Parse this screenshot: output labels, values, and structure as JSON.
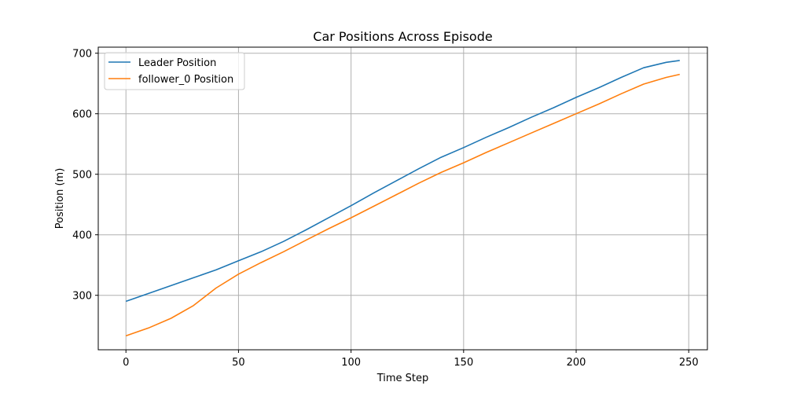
{
  "chart_data": {
    "type": "line",
    "title": "Car Positions Across Episode",
    "xlabel": "Time Step",
    "ylabel": "Position (m)",
    "xlim": [
      -12.3,
      258.3
    ],
    "ylim": [
      210,
      710
    ],
    "xticks": [
      0,
      50,
      100,
      150,
      200,
      250
    ],
    "yticks": [
      300,
      400,
      500,
      600,
      700
    ],
    "grid": true,
    "legend": "upper-left",
    "series": [
      {
        "name": "Leader Position",
        "color": "#1f77b4",
        "points": [
          [
            0,
            290
          ],
          [
            10,
            303
          ],
          [
            20,
            316
          ],
          [
            30,
            329
          ],
          [
            40,
            342
          ],
          [
            50,
            357
          ],
          [
            60,
            372
          ],
          [
            70,
            389
          ],
          [
            80,
            408
          ],
          [
            90,
            428
          ],
          [
            100,
            448
          ],
          [
            110,
            469
          ],
          [
            120,
            489
          ],
          [
            130,
            509
          ],
          [
            140,
            528
          ],
          [
            150,
            544
          ],
          [
            160,
            561
          ],
          [
            170,
            577
          ],
          [
            180,
            594
          ],
          [
            190,
            610
          ],
          [
            200,
            627
          ],
          [
            210,
            643
          ],
          [
            220,
            660
          ],
          [
            230,
            676
          ],
          [
            240,
            685
          ],
          [
            246,
            688
          ]
        ]
      },
      {
        "name": "follower_0 Position",
        "color": "#ff7f0e",
        "points": [
          [
            0,
            233
          ],
          [
            10,
            246
          ],
          [
            20,
            262
          ],
          [
            30,
            283
          ],
          [
            40,
            312
          ],
          [
            50,
            335
          ],
          [
            60,
            354
          ],
          [
            70,
            372
          ],
          [
            80,
            391
          ],
          [
            90,
            410
          ],
          [
            100,
            428
          ],
          [
            110,
            447
          ],
          [
            120,
            466
          ],
          [
            130,
            485
          ],
          [
            140,
            503
          ],
          [
            150,
            519
          ],
          [
            160,
            536
          ],
          [
            170,
            552
          ],
          [
            180,
            568
          ],
          [
            190,
            584
          ],
          [
            200,
            600
          ],
          [
            210,
            616
          ],
          [
            220,
            633
          ],
          [
            230,
            649
          ],
          [
            240,
            660
          ],
          [
            246,
            665
          ]
        ]
      }
    ]
  }
}
